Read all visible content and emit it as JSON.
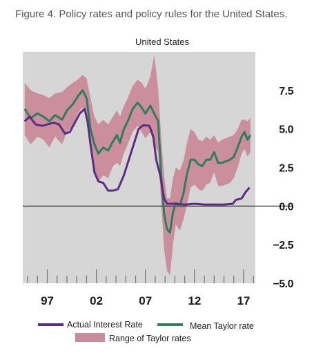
{
  "caption": "Figure 4. Policy rates and policy rules for the United States.",
  "chart_data": {
    "type": "line",
    "title": "United States",
    "xlabel": "",
    "ylabel": "",
    "xlim": [
      1994.5,
      2018.2
    ],
    "ylim": [
      -5.0,
      10.0
    ],
    "yticks": [
      {
        "value": 7.5,
        "label": "7.5"
      },
      {
        "value": 5.0,
        "label": "5.0"
      },
      {
        "value": 2.5,
        "label": "2.5"
      },
      {
        "value": 0.0,
        "label": "0.0"
      },
      {
        "value": -2.5,
        "label": "−2.5"
      },
      {
        "value": -5.0,
        "label": "−5.0"
      }
    ],
    "xticks": [
      {
        "value": 1997,
        "label": "97"
      },
      {
        "value": 2002,
        "label": "02"
      },
      {
        "value": 2007,
        "label": "07"
      },
      {
        "value": 2012,
        "label": "12"
      },
      {
        "value": 2017,
        "label": "17"
      }
    ],
    "zero_line": true,
    "grid": false,
    "legend_position": "bottom",
    "series": [
      {
        "name": "Actual Interest Rate",
        "kind": "line",
        "color": "#5b2c83",
        "points": [
          [
            1994.7,
            5.5
          ],
          [
            1995.2,
            5.8
          ],
          [
            1995.8,
            5.3
          ],
          [
            1996.5,
            5.2
          ],
          [
            1997.0,
            5.3
          ],
          [
            1997.6,
            5.4
          ],
          [
            1998.2,
            5.3
          ],
          [
            1998.8,
            4.7
          ],
          [
            1999.3,
            4.8
          ],
          [
            1999.8,
            5.4
          ],
          [
            2000.3,
            6.0
          ],
          [
            2000.8,
            6.3
          ],
          [
            2001.1,
            5.5
          ],
          [
            2001.4,
            4.0
          ],
          [
            2001.8,
            2.2
          ],
          [
            2002.2,
            1.6
          ],
          [
            2002.7,
            1.5
          ],
          [
            2003.2,
            1.0
          ],
          [
            2003.7,
            1.0
          ],
          [
            2004.2,
            1.1
          ],
          [
            2004.8,
            2.0
          ],
          [
            2005.3,
            3.0
          ],
          [
            2005.8,
            4.0
          ],
          [
            2006.3,
            5.0
          ],
          [
            2006.8,
            5.25
          ],
          [
            2007.4,
            5.2
          ],
          [
            2007.8,
            4.5
          ],
          [
            2008.1,
            3.0
          ],
          [
            2008.5,
            2.0
          ],
          [
            2008.9,
            0.5
          ],
          [
            2009.2,
            0.15
          ],
          [
            2010.0,
            0.15
          ],
          [
            2011.0,
            0.1
          ],
          [
            2012.0,
            0.15
          ],
          [
            2013.0,
            0.1
          ],
          [
            2014.0,
            0.1
          ],
          [
            2015.0,
            0.1
          ],
          [
            2015.9,
            0.15
          ],
          [
            2016.2,
            0.4
          ],
          [
            2016.8,
            0.5
          ],
          [
            2017.2,
            0.9
          ],
          [
            2017.6,
            1.2
          ]
        ]
      },
      {
        "name": "Mean Taylor rate",
        "kind": "line",
        "color": "#2e7d5b",
        "points": [
          [
            1994.7,
            6.3
          ],
          [
            1995.3,
            5.7
          ],
          [
            1996.0,
            6.0
          ],
          [
            1996.6,
            5.8
          ],
          [
            1997.2,
            5.5
          ],
          [
            1997.8,
            5.9
          ],
          [
            1998.5,
            5.6
          ],
          [
            1999.0,
            6.2
          ],
          [
            1999.6,
            6.6
          ],
          [
            2000.1,
            7.1
          ],
          [
            2000.6,
            7.5
          ],
          [
            2001.0,
            7.0
          ],
          [
            2001.4,
            5.0
          ],
          [
            2001.8,
            4.0
          ],
          [
            2002.2,
            3.4
          ],
          [
            2002.7,
            3.8
          ],
          [
            2003.2,
            3.6
          ],
          [
            2003.7,
            4.2
          ],
          [
            2004.1,
            4.6
          ],
          [
            2004.4,
            4.1
          ],
          [
            2004.8,
            5.0
          ],
          [
            2005.2,
            5.5
          ],
          [
            2005.7,
            6.3
          ],
          [
            2006.2,
            6.7
          ],
          [
            2006.6,
            6.4
          ],
          [
            2007.0,
            6.0
          ],
          [
            2007.5,
            6.5
          ],
          [
            2007.9,
            6.0
          ],
          [
            2008.3,
            5.5
          ],
          [
            2008.6,
            2.0
          ],
          [
            2008.9,
            -0.5
          ],
          [
            2009.2,
            -1.5
          ],
          [
            2009.5,
            -1.7
          ],
          [
            2009.8,
            -0.4
          ],
          [
            2010.1,
            0.2
          ],
          [
            2010.5,
            0.0
          ],
          [
            2010.9,
            0.9
          ],
          [
            2011.2,
            2.0
          ],
          [
            2011.6,
            3.0
          ],
          [
            2012.0,
            3.0
          ],
          [
            2012.4,
            2.7
          ],
          [
            2012.8,
            2.6
          ],
          [
            2013.2,
            3.0
          ],
          [
            2013.6,
            3.0
          ],
          [
            2014.0,
            3.5
          ],
          [
            2014.4,
            2.8
          ],
          [
            2014.8,
            2.8
          ],
          [
            2015.2,
            2.9
          ],
          [
            2015.6,
            3.0
          ],
          [
            2016.0,
            3.2
          ],
          [
            2016.4,
            3.8
          ],
          [
            2016.8,
            4.5
          ],
          [
            2017.1,
            4.8
          ],
          [
            2017.4,
            4.3
          ],
          [
            2017.7,
            4.6
          ]
        ]
      },
      {
        "name": "Range of Taylor rates",
        "kind": "band",
        "color": "#c98a9a",
        "x": [
          1994.7,
          1995.3,
          1996.0,
          1996.6,
          1997.2,
          1997.8,
          1998.5,
          1999.0,
          1999.6,
          2000.1,
          2000.6,
          2001.0,
          2001.4,
          2001.8,
          2002.2,
          2002.7,
          2003.2,
          2003.7,
          2004.1,
          2004.4,
          2004.8,
          2005.2,
          2005.7,
          2006.2,
          2006.6,
          2007.0,
          2007.5,
          2007.9,
          2008.3,
          2008.6,
          2008.9,
          2009.2,
          2009.5,
          2009.8,
          2010.1,
          2010.5,
          2010.9,
          2011.2,
          2011.6,
          2012.0,
          2012.4,
          2012.8,
          2013.2,
          2013.6,
          2014.0,
          2014.4,
          2014.8,
          2015.2,
          2015.6,
          2016.0,
          2016.4,
          2016.8,
          2017.1,
          2017.4,
          2017.7
        ],
        "upper": [
          8.0,
          7.5,
          7.3,
          7.2,
          7.0,
          7.3,
          7.4,
          7.7,
          8.0,
          8.2,
          8.5,
          8.3,
          7.0,
          5.8,
          5.3,
          5.6,
          5.3,
          5.8,
          6.2,
          5.8,
          6.5,
          7.0,
          7.8,
          8.2,
          8.0,
          7.6,
          8.4,
          9.8,
          7.6,
          4.5,
          2.0,
          0.5,
          0.5,
          1.8,
          2.5,
          2.3,
          3.0,
          4.0,
          5.0,
          4.8,
          4.3,
          4.2,
          4.5,
          4.3,
          4.6,
          4.1,
          4.3,
          4.4,
          4.5,
          4.6,
          5.0,
          5.6,
          5.6,
          5.5,
          5.7
        ],
        "lower": [
          4.6,
          4.0,
          4.5,
          4.3,
          3.8,
          4.5,
          4.0,
          4.8,
          5.2,
          6.0,
          6.4,
          5.8,
          3.6,
          2.4,
          1.6,
          2.0,
          1.8,
          2.6,
          2.8,
          2.6,
          3.4,
          4.0,
          4.8,
          5.2,
          4.8,
          4.4,
          4.8,
          4.0,
          3.5,
          0.2,
          -2.8,
          -4.2,
          -4.5,
          -2.5,
          -1.2,
          -1.6,
          -0.8,
          0.0,
          1.2,
          1.4,
          1.1,
          1.0,
          1.4,
          1.5,
          2.2,
          1.3,
          1.3,
          1.4,
          1.5,
          1.8,
          2.5,
          3.4,
          3.7,
          3.2,
          3.5
        ]
      }
    ],
    "legend": [
      {
        "label": "Actual Interest Rate",
        "series": 0
      },
      {
        "label": "Mean Taylor rate",
        "series": 1
      },
      {
        "label": "Range of Taylor rates",
        "series": 2
      }
    ]
  }
}
